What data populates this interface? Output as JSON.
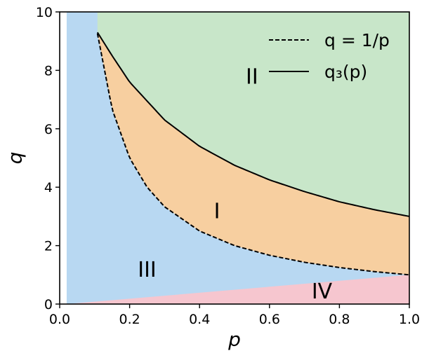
{
  "chart_data": {
    "type": "area",
    "xlabel": "p",
    "ylabel": "q",
    "xlim": [
      0.0,
      1.0
    ],
    "ylim": [
      0,
      10
    ],
    "x_ticks": [
      "0.0",
      "0.2",
      "0.4",
      "0.6",
      "0.8",
      "1.0"
    ],
    "y_ticks": [
      "0",
      "2",
      "4",
      "6",
      "8",
      "10"
    ],
    "grid": false,
    "legend_position": "top-right",
    "series": [
      {
        "name": "q = 1/p",
        "style": "dashed",
        "color": "#000000",
        "x": [
          0.108,
          0.15,
          0.2,
          0.25,
          0.3,
          0.4,
          0.5,
          0.6,
          0.7,
          0.8,
          0.9,
          1.0
        ],
        "y": [
          9.26,
          6.67,
          5.0,
          4.0,
          3.33,
          2.5,
          2.0,
          1.67,
          1.43,
          1.25,
          1.11,
          1.0
        ]
      },
      {
        "name": "q₃(p)",
        "style": "solid",
        "color": "#000000",
        "x": [
          0.108,
          0.15,
          0.2,
          0.3,
          0.4,
          0.5,
          0.6,
          0.7,
          0.8,
          0.9,
          1.0
        ],
        "y": [
          9.3,
          8.5,
          7.6,
          6.3,
          5.4,
          4.75,
          4.25,
          3.85,
          3.5,
          3.23,
          3.0
        ]
      }
    ],
    "regions": [
      {
        "label": "I",
        "color": "#f7cfa0",
        "label_at": [
          0.45,
          3.2
        ]
      },
      {
        "label": "II",
        "color": "#c8e6c9",
        "label_at": [
          0.55,
          7.8
        ]
      },
      {
        "label": "III",
        "color": "#b8d8f2",
        "label_at": [
          0.25,
          1.2
        ]
      },
      {
        "label": "IV",
        "color": "#f6c6cf",
        "label_at": [
          0.75,
          0.45
        ]
      }
    ],
    "region_iv_boundary": {
      "x": [
        0.02,
        1.0
      ],
      "y": [
        0.0,
        1.0
      ]
    },
    "region_iii_left_edge_p": 0.02,
    "region_ii_left_edge_p": 0.108
  }
}
